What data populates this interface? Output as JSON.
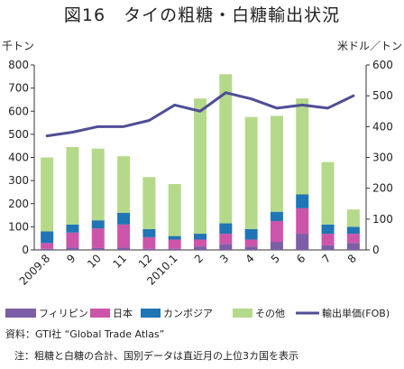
{
  "title": "図16　タイの粗糖・白糖輸出状況",
  "source": "資料：GTI社 “Global Trade Atlas”",
  "note": "注：粗糖と白糖の合計、国別データは直近月の上位3カ国を表示",
  "chart_data": {
    "type": "bar",
    "stacked": true,
    "x": [
      "2009.8",
      "9",
      "10",
      "11",
      "12",
      "2010.1",
      "2",
      "3",
      "4",
      "5",
      "6",
      "7",
      "8"
    ],
    "y_left": {
      "label": "千トン",
      "range": [
        0,
        800
      ],
      "ticks": [
        0,
        100,
        200,
        300,
        400,
        500,
        600,
        700,
        800
      ]
    },
    "y_right": {
      "label": "米ドル／トン",
      "range": [
        0,
        600
      ],
      "ticks": [
        0,
        100,
        200,
        300,
        400,
        500,
        600
      ]
    },
    "series": [
      {
        "name": "フィリピン",
        "axis": "left",
        "color": "#7b5ea7",
        "values": [
          5,
          10,
          8,
          10,
          5,
          5,
          15,
          25,
          15,
          35,
          70,
          20,
          30
        ]
      },
      {
        "name": "日本",
        "axis": "left",
        "color": "#cc55aa",
        "values": [
          25,
          65,
          85,
          100,
          50,
          40,
          30,
          45,
          30,
          90,
          110,
          50,
          40
        ]
      },
      {
        "name": "カンボジア",
        "axis": "left",
        "color": "#1f75b5",
        "values": [
          50,
          35,
          35,
          50,
          35,
          15,
          25,
          45,
          45,
          40,
          60,
          40,
          30
        ]
      },
      {
        "name": "その他",
        "axis": "left",
        "color": "#b5d98a",
        "values": [
          320,
          335,
          310,
          245,
          225,
          225,
          585,
          645,
          485,
          415,
          415,
          270,
          75
        ]
      },
      {
        "name": "輸出単価(FOB)",
        "axis": "right",
        "type": "line",
        "color": "#4e4e96",
        "values": [
          370,
          382,
          400,
          400,
          420,
          470,
          450,
          510,
          490,
          460,
          470,
          460,
          500
        ]
      }
    ],
    "grid": false,
    "legend": "bottom"
  }
}
